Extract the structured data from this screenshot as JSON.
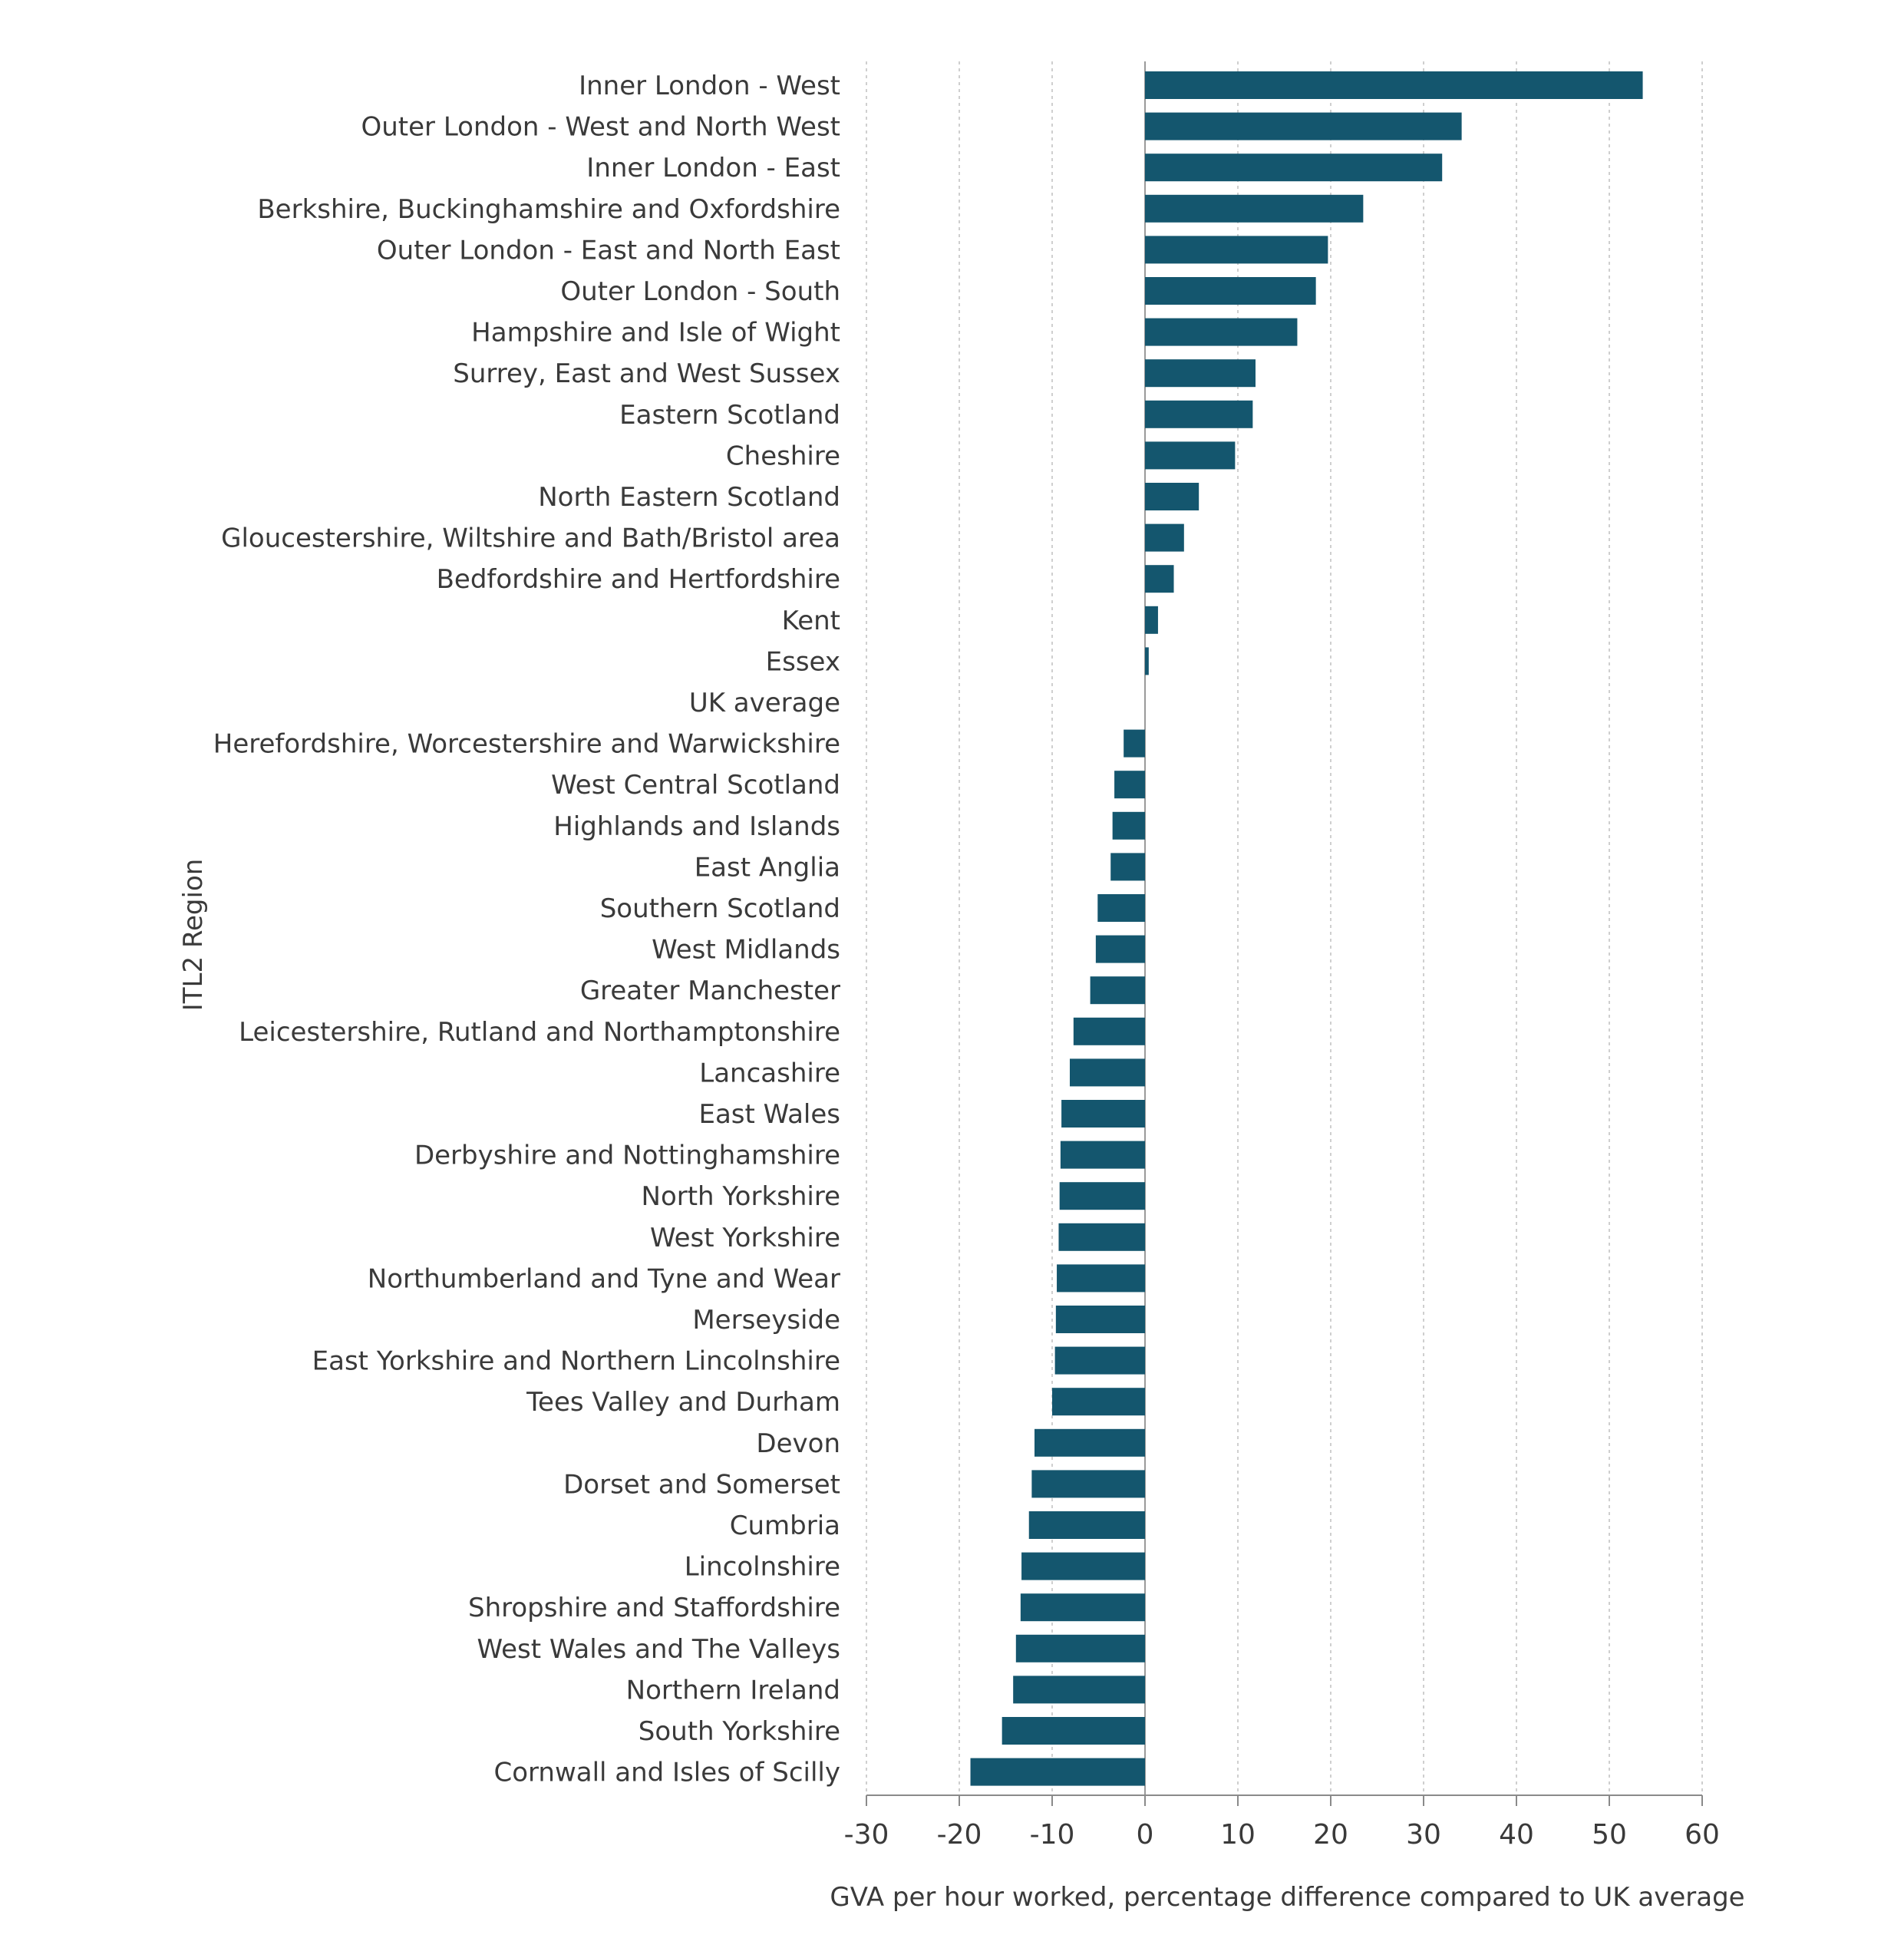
{
  "chart_data": {
    "type": "bar",
    "orientation": "horizontal",
    "title": "",
    "xlabel": "GVA per hour worked, percentage difference compared to UK average",
    "ylabel": "ITL2 Region",
    "xlim": [
      -30,
      60
    ],
    "xticks": [
      -30,
      -20,
      -10,
      0,
      10,
      20,
      30,
      40,
      50,
      60
    ],
    "grid": true,
    "bar_color": "#14566e",
    "categories": [
      "Inner London - West",
      "Outer London - West and North West",
      "Inner London - East",
      "Berkshire, Buckinghamshire and Oxfordshire",
      "Outer London - East and North East",
      "Outer London - South",
      "Hampshire and Isle of Wight",
      "Surrey, East and West Sussex",
      "Eastern Scotland",
      "Cheshire",
      "North Eastern Scotland",
      "Gloucestershire, Wiltshire and Bath/Bristol area",
      "Bedfordshire and Hertfordshire",
      "Kent",
      "Essex",
      "UK average",
      "Herefordshire, Worcestershire and Warwickshire",
      "West Central Scotland",
      "Highlands and Islands",
      "East Anglia",
      "Southern Scotland",
      "West Midlands",
      "Greater Manchester",
      "Leicestershire, Rutland and Northamptonshire",
      "Lancashire",
      "East Wales",
      "Derbyshire and Nottinghamshire",
      "North Yorkshire",
      "West Yorkshire",
      "Northumberland and Tyne and Wear",
      "Merseyside",
      "East Yorkshire and Northern Lincolnshire",
      "Tees Valley and Durham",
      "Devon",
      "Dorset and Somerset",
      "Cumbria",
      "Lincolnshire",
      "Shropshire and Staffordshire",
      "West Wales and The Valleys",
      "Northern Ireland",
      "South Yorkshire",
      "Cornwall and Isles of Scilly"
    ],
    "values": [
      53.6,
      34.1,
      32.0,
      23.5,
      19.7,
      18.4,
      16.4,
      11.9,
      11.6,
      9.7,
      5.8,
      4.2,
      3.1,
      1.4,
      0.4,
      0.0,
      -2.3,
      -3.3,
      -3.5,
      -3.7,
      -5.1,
      -5.3,
      -5.9,
      -7.7,
      -8.1,
      -9.0,
      -9.1,
      -9.2,
      -9.3,
      -9.5,
      -9.6,
      -9.7,
      -10.0,
      -11.9,
      -12.2,
      -12.5,
      -13.3,
      -13.4,
      -13.9,
      -14.2,
      -15.4,
      -18.8
    ]
  }
}
